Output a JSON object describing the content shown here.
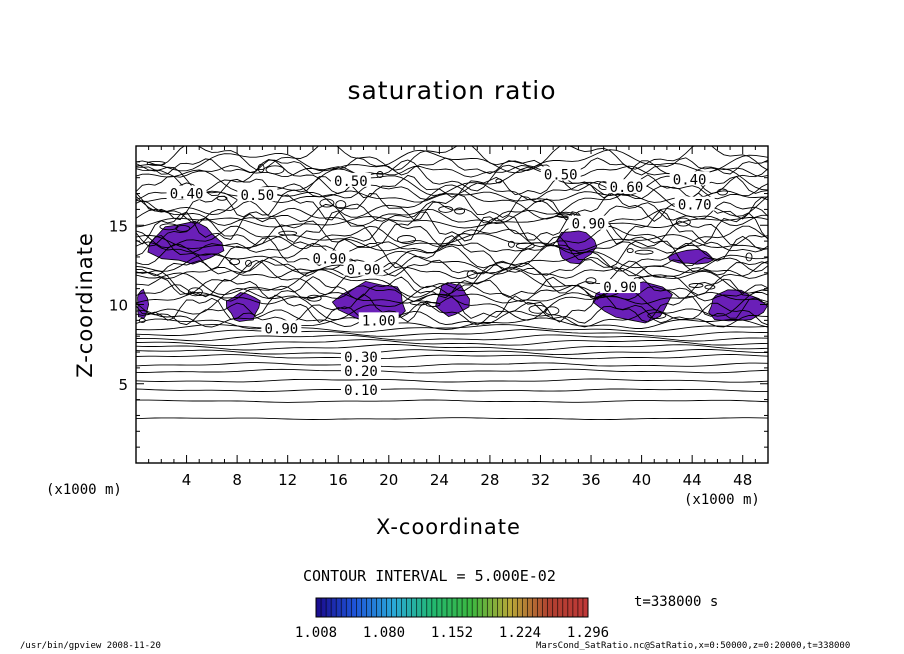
{
  "title": "saturation ratio",
  "footer": {
    "left": "/usr/bin/gpview   2008-11-20",
    "right": "MarsCond_SatRatio.nc@SatRatio,x=0:50000,z=0:20000,t=338000"
  },
  "colorbar": {
    "tick_labels": [
      "1.008",
      "1.080",
      "1.152",
      "1.224",
      "1.296"
    ],
    "range": [
      1.008,
      1.296
    ],
    "colors": [
      "#1a0a8c",
      "#1e55d8",
      "#2aa8d8",
      "#22b870",
      "#3cb840",
      "#b8a838",
      "#b04030",
      "#c03838"
    ]
  },
  "contour_interval_label": "CONTOUR INTERVAL = 5.000E-02",
  "time_label": "t=338000 s",
  "fill_color": "#6a1fb8",
  "chart_data": {
    "type": "contour",
    "title": "saturation ratio",
    "xlabel": "X-coordinate",
    "ylabel": "Z-coordinate",
    "x_unit_label": "(x1000 m)",
    "xlim": [
      0,
      50
    ],
    "ylim": [
      0,
      20
    ],
    "x_ticks": [
      4,
      8,
      12,
      16,
      20,
      24,
      28,
      32,
      36,
      40,
      44,
      48
    ],
    "y_ticks": [
      5,
      10,
      15
    ],
    "contour_interval": 0.05,
    "contour_labels": [
      {
        "text": "0.10",
        "x": 17.8,
        "z": 4.6
      },
      {
        "text": "0.20",
        "x": 17.8,
        "z": 5.8
      },
      {
        "text": "0.30",
        "x": 17.8,
        "z": 6.7
      },
      {
        "text": "0.90",
        "x": 11.5,
        "z": 8.5
      },
      {
        "text": "1.00",
        "x": 19.2,
        "z": 9.0
      },
      {
        "text": "0.90",
        "x": 15.3,
        "z": 12.9
      },
      {
        "text": "0.90",
        "x": 18.0,
        "z": 12.2
      },
      {
        "text": "0.90",
        "x": 35.8,
        "z": 15.1
      },
      {
        "text": "0.90",
        "x": 38.3,
        "z": 11.1
      },
      {
        "text": "0.40",
        "x": 4.0,
        "z": 17.0
      },
      {
        "text": "0.50",
        "x": 9.6,
        "z": 16.9
      },
      {
        "text": "0.50",
        "x": 17.0,
        "z": 17.8
      },
      {
        "text": "0.50",
        "x": 33.6,
        "z": 18.2
      },
      {
        "text": "0.60",
        "x": 38.8,
        "z": 17.4
      },
      {
        "text": "0.40",
        "x": 43.8,
        "z": 17.9
      },
      {
        "text": "0.70",
        "x": 44.2,
        "z": 16.3
      }
    ],
    "supersaturated_regions": [
      {
        "x": [
          0.6,
          7.3
        ],
        "z": [
          12.5,
          15.3
        ]
      },
      {
        "x": [
          0.0,
          1.0
        ],
        "z": [
          9.0,
          11.0
        ]
      },
      {
        "x": [
          7.0,
          10.0
        ],
        "z": [
          8.8,
          10.8
        ]
      },
      {
        "x": [
          15.5,
          22.0
        ],
        "z": [
          8.8,
          11.5
        ]
      },
      {
        "x": [
          23.5,
          26.5
        ],
        "z": [
          9.2,
          11.5
        ]
      },
      {
        "x": [
          33.0,
          36.5
        ],
        "z": [
          12.5,
          14.8
        ]
      },
      {
        "x": [
          36.0,
          43.0
        ],
        "z": [
          8.8,
          11.5
        ]
      },
      {
        "x": [
          42.0,
          46.0
        ],
        "z": [
          12.5,
          13.5
        ]
      },
      {
        "x": [
          44.8,
          50.0
        ],
        "z": [
          8.8,
          11.0
        ]
      }
    ]
  }
}
